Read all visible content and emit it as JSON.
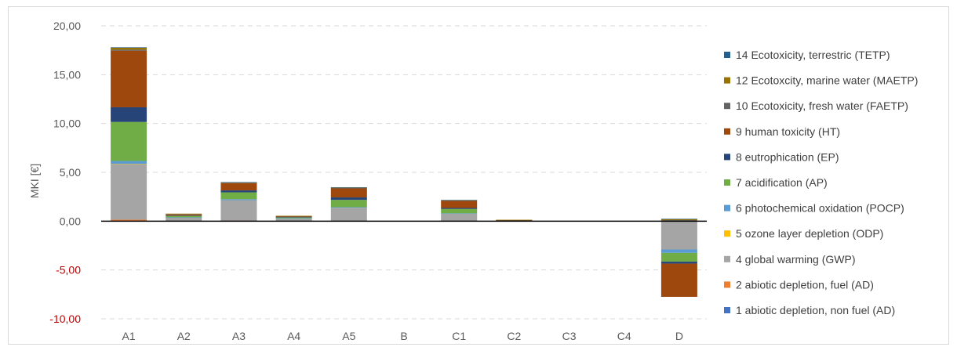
{
  "chart_data": {
    "type": "bar",
    "stacked": true,
    "title": "",
    "xlabel": "",
    "ylabel": "MKI [€]",
    "ylim": [
      -10,
      20
    ],
    "yticks": [
      "20,00",
      "15,00",
      "10,00",
      "5,00",
      "0,00",
      "-5,00",
      "-10,00"
    ],
    "grid": true,
    "legend_position": "right",
    "categories": [
      "A1",
      "A2",
      "A3",
      "A4",
      "A5",
      "B",
      "C1",
      "C2",
      "C3",
      "C4",
      "D"
    ],
    "series": [
      {
        "name": "1 abiotic depletion, non fuel (AD)",
        "color": "#4472c4",
        "values": [
          0.05,
          0,
          0,
          0,
          0,
          0,
          0,
          0,
          0,
          0,
          0
        ]
      },
      {
        "name": "2 abiotic depletion, fuel (AD)",
        "color": "#ed7d31",
        "values": [
          0.1,
          0.02,
          0.05,
          0.02,
          0.03,
          0,
          0.02,
          0.01,
          0,
          0,
          0
        ]
      },
      {
        "name": "4 global warming (GWP)",
        "color": "#a5a5a5",
        "values": [
          5.7,
          0.35,
          2.1,
          0.25,
          1.35,
          0,
          0.75,
          0.05,
          0,
          0,
          -2.9
        ]
      },
      {
        "name": "5 ozone layer depletion (ODP)",
        "color": "#ffc000",
        "values": [
          0.01,
          0,
          0,
          0,
          0,
          0,
          0,
          0,
          0,
          0,
          0
        ]
      },
      {
        "name": "6 photochemical oxidation (POCP)",
        "color": "#5b9bd5",
        "values": [
          0.3,
          0.02,
          0.1,
          0.02,
          0.05,
          0,
          0.03,
          0,
          0,
          0,
          -0.35
        ]
      },
      {
        "name": "7 acidification (AP)",
        "color": "#70ad47",
        "values": [
          4.0,
          0.15,
          0.7,
          0.1,
          0.75,
          0,
          0.45,
          0.02,
          0,
          0,
          -0.9
        ]
      },
      {
        "name": "8 eutrophication (EP)",
        "color": "#264478",
        "values": [
          1.5,
          0.04,
          0.2,
          0.03,
          0.25,
          0,
          0.1,
          0.01,
          0,
          0,
          -0.2
        ]
      },
      {
        "name": "9 human toxicity (HT)",
        "color": "#9e480e",
        "values": [
          5.8,
          0.12,
          0.75,
          0.08,
          0.95,
          0,
          0.75,
          0.03,
          0,
          0,
          -3.4
        ]
      },
      {
        "name": "10 Ecotoxicity, fresh water (FAETP)",
        "color": "#636363",
        "values": [
          0.1,
          0.02,
          0.03,
          0.02,
          0.02,
          0,
          0.02,
          0,
          0,
          0,
          0.1
        ]
      },
      {
        "name": "12 Ecotoxcity, marine water (MAETP)",
        "color": "#997300",
        "values": [
          0.2,
          0.05,
          0.05,
          0.03,
          0.05,
          0,
          0.03,
          0.02,
          0,
          0,
          0.1
        ]
      },
      {
        "name": "14 Ecotoxicity, terrestric (TETP)",
        "color": "#255e91",
        "values": [
          0.05,
          0,
          0.02,
          0,
          0.02,
          0,
          0.02,
          0,
          0,
          0,
          0.05
        ]
      }
    ]
  }
}
